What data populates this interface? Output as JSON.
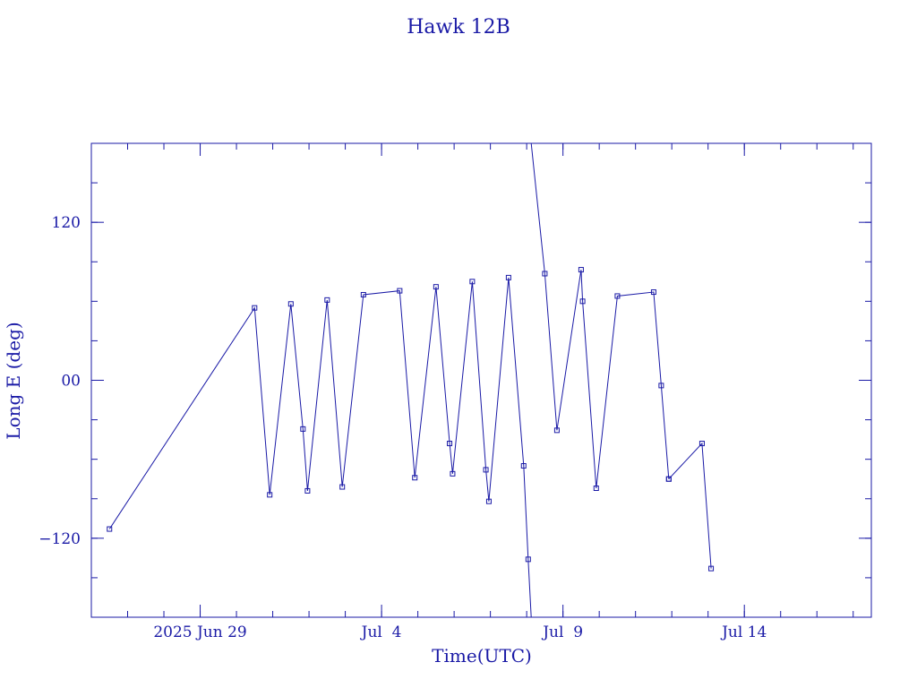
{
  "chart_data": {
    "type": "line",
    "title": "Hawk 12B",
    "xlabel": "Time(UTC)",
    "ylabel": "Long E (deg)",
    "color": "#1a1aa6",
    "x_unit": "days",
    "xlim": [
      "2025-06-26T00:00",
      "2025-07-17T12:00"
    ],
    "ylim": [
      -180,
      180
    ],
    "x_ticks": [
      {
        "date": "2025-06-29",
        "label": "2025 Jun 29"
      },
      {
        "date": "2025-07-04",
        "label": "Jul  4"
      },
      {
        "date": "2025-07-09",
        "label": "Jul  9"
      },
      {
        "date": "2025-07-14",
        "label": "Jul 14"
      }
    ],
    "y_ticks": [
      {
        "value": 120,
        "label": "120"
      },
      {
        "value": 0,
        "label": "00"
      },
      {
        "value": -120,
        "label": "−120"
      }
    ],
    "series": [
      {
        "points": [
          {
            "x": "2025-06-26T12:00",
            "y": -113
          },
          {
            "x": "2025-06-30T12:00",
            "y": 55
          },
          {
            "x": "2025-06-30T22:00",
            "y": -87
          },
          {
            "x": "2025-07-01T12:00",
            "y": 58
          },
          {
            "x": "2025-07-01T20:00",
            "y": -37
          },
          {
            "x": "2025-07-01T23:00",
            "y": -84
          },
          {
            "x": "2025-07-02T12:00",
            "y": 61
          },
          {
            "x": "2025-07-02T22:00",
            "y": -81
          },
          {
            "x": "2025-07-03T12:00",
            "y": 65
          },
          {
            "x": "2025-07-04T12:00",
            "y": 68
          },
          {
            "x": "2025-07-04T22:00",
            "y": -74
          },
          {
            "x": "2025-07-05T12:00",
            "y": 71
          },
          {
            "x": "2025-07-05T21:00",
            "y": -48
          },
          {
            "x": "2025-07-05T23:00",
            "y": -71
          },
          {
            "x": "2025-07-06T12:00",
            "y": 75
          },
          {
            "x": "2025-07-06T21:00",
            "y": -68
          },
          {
            "x": "2025-07-06T23:00",
            "y": -92
          },
          {
            "x": "2025-07-07T12:00",
            "y": 78
          },
          {
            "x": "2025-07-07T22:00",
            "y": -65
          },
          {
            "x": "2025-07-08T01:00",
            "y": -136
          },
          {
            "x": "2025-07-08T03:00",
            "y": -180
          }
        ]
      },
      {
        "points": [
          {
            "x": "2025-07-08T03:00",
            "y": 180
          },
          {
            "x": "2025-07-08T12:00",
            "y": 81
          },
          {
            "x": "2025-07-08T20:00",
            "y": -38
          },
          {
            "x": "2025-07-09T12:00",
            "y": 84
          },
          {
            "x": "2025-07-09T13:00",
            "y": 60
          },
          {
            "x": "2025-07-09T22:00",
            "y": -82
          },
          {
            "x": "2025-07-10T12:00",
            "y": 64
          },
          {
            "x": "2025-07-11T12:00",
            "y": 67
          },
          {
            "x": "2025-07-11T17:00",
            "y": -4
          },
          {
            "x": "2025-07-11T22:00",
            "y": -75
          }
        ]
      },
      {
        "points": [
          {
            "x": "2025-07-11T22:00",
            "y": -75
          },
          {
            "x": "2025-07-12T20:00",
            "y": -48
          },
          {
            "x": "2025-07-13T02:00",
            "y": -143
          }
        ]
      }
    ]
  }
}
